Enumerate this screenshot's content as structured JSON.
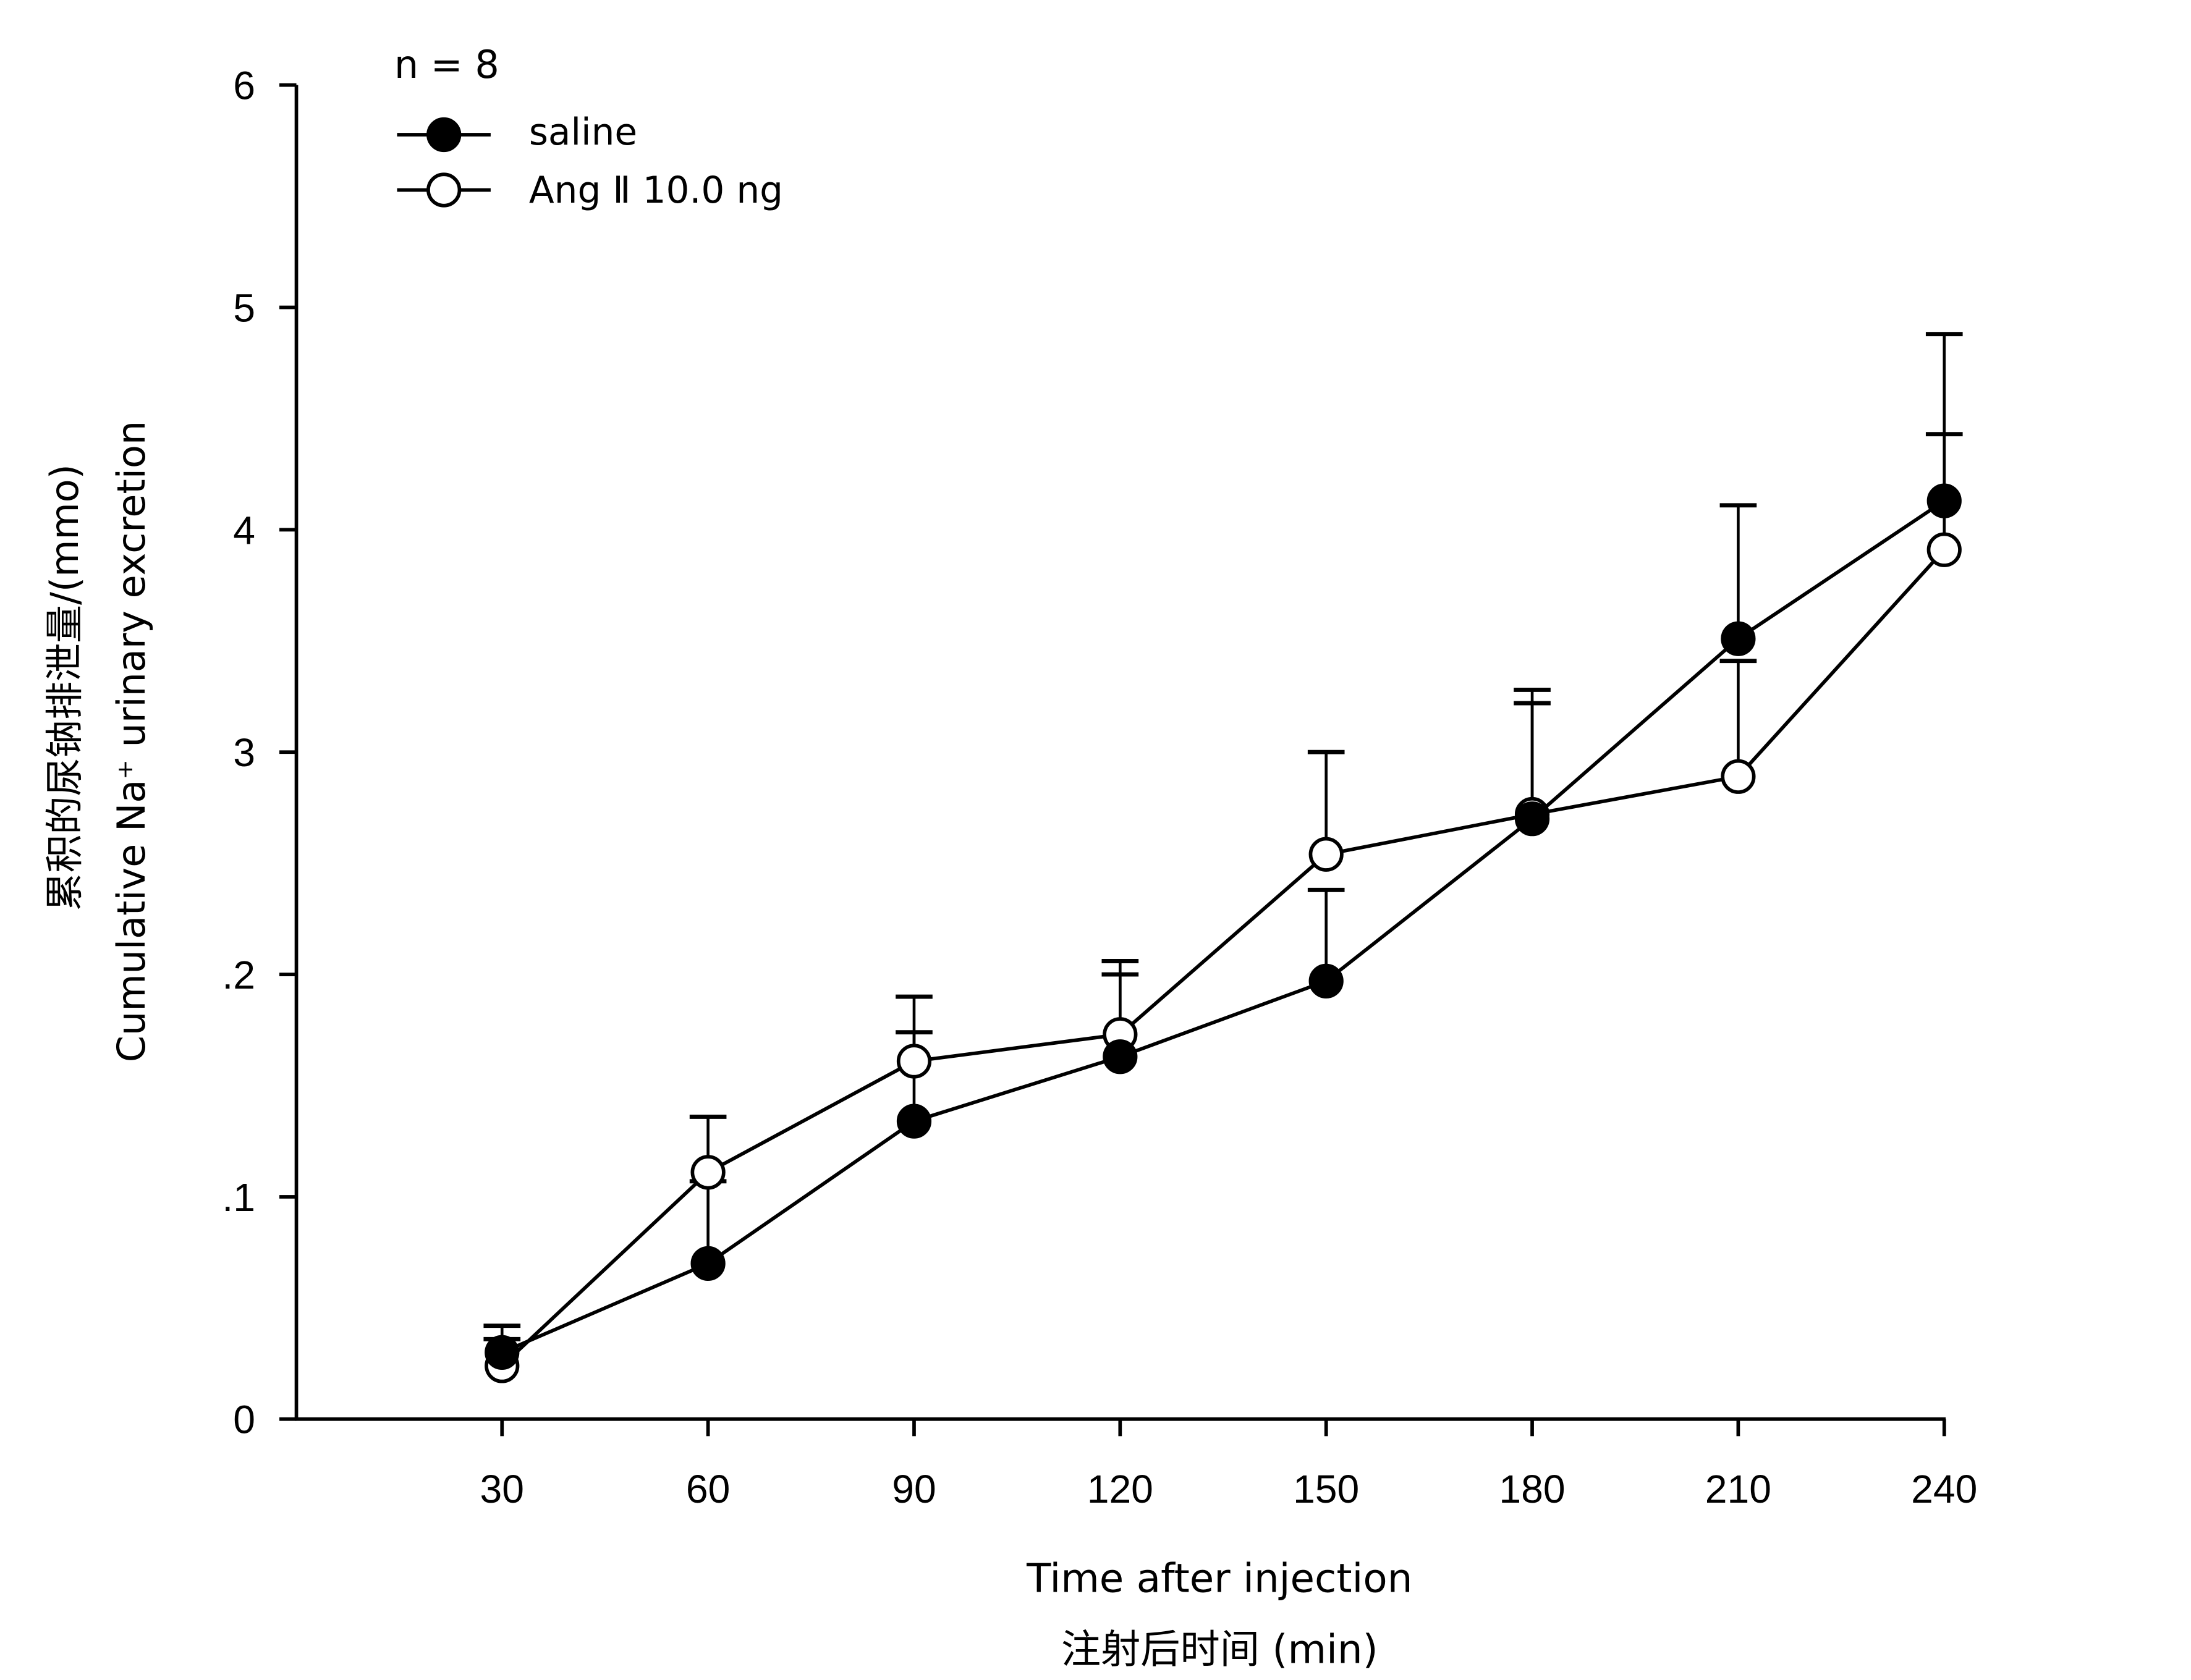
{
  "chart_data": {
    "type": "line",
    "title": "",
    "annotation": "n = 8",
    "xlabel": "Time after injection",
    "xlabel_cn": "注射后时间 (min)",
    "ylabel": "Cumulative Na⁺ urinary excretion",
    "ylabel_cn": "累积的尿钠排泄量/(mmo)",
    "x": [
      30,
      60,
      90,
      120,
      150,
      180,
      210,
      240
    ],
    "xticks": [
      "30",
      "60",
      "90",
      "120",
      "150",
      "180",
      "210",
      "240"
    ],
    "yticks": [
      "0",
      ".1",
      ".2",
      "3",
      "4",
      "5",
      "6"
    ],
    "ylim": [
      0,
      6
    ],
    "legend_position": "top-left",
    "series": [
      {
        "name": "saline",
        "marker": "filled-circle",
        "values": [
          0.3,
          0.7,
          1.34,
          1.63,
          1.97,
          2.7,
          3.51,
          4.13
        ],
        "error_upper": [
          0.36,
          1.07,
          1.74,
          2.0,
          2.38,
          3.22,
          4.11,
          4.88
        ]
      },
      {
        "name": "Ang Ⅱ 10.0 ng",
        "marker": "open-circle",
        "values": [
          0.24,
          1.11,
          1.61,
          1.73,
          2.54,
          2.72,
          2.89,
          3.91
        ],
        "error_upper": [
          0.42,
          1.36,
          1.9,
          2.06,
          3.0,
          3.28,
          3.41,
          4.43
        ]
      }
    ]
  }
}
